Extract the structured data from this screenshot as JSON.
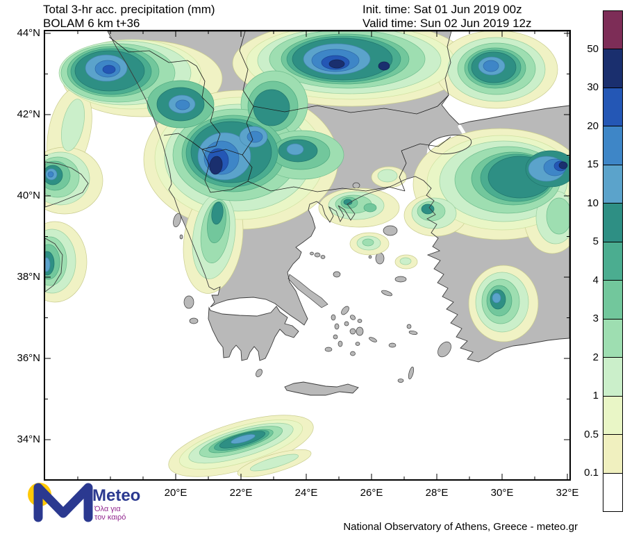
{
  "header": {
    "title_line1": "Total 3-hr acc. precipitation (mm)",
    "title_line2": "BOLAM 6 km t+36",
    "init_time": "Init. time: Sat 01 Jun 2019 00z",
    "valid_time": "Valid time: Sun 02 Jun 2019 12z"
  },
  "map": {
    "y_ticks": [
      "44°N",
      "42°N",
      "40°N",
      "38°N",
      "36°N",
      "34°N"
    ],
    "x_ticks": [
      "20°E",
      "22°E",
      "24°E",
      "26°E",
      "28°E",
      "30°E",
      "32°E"
    ]
  },
  "legend": {
    "labels": [
      "50",
      "30",
      "20",
      "15",
      "10",
      "5",
      "4",
      "3",
      "2",
      "1",
      "0.5",
      "0.1"
    ],
    "colors": [
      "#7d2d57",
      "#1a2f6e",
      "#2457b5",
      "#3e86c7",
      "#5ba3cb",
      "#2e8f84",
      "#4bad90",
      "#72c79c",
      "#9edeb1",
      "#cbefca",
      "#e9f6c6",
      "#f0f0bf",
      "#ffffff"
    ]
  },
  "map_colors": {
    "land": "#b9b9b9",
    "sea": "#ffffff"
  },
  "footer": {
    "brand": "Meteo",
    "tagline_line1": "Όλα για",
    "tagline_line2": "τον καιρό",
    "attribution": "National Observatory of Athens, Greece - meteo.gr"
  }
}
